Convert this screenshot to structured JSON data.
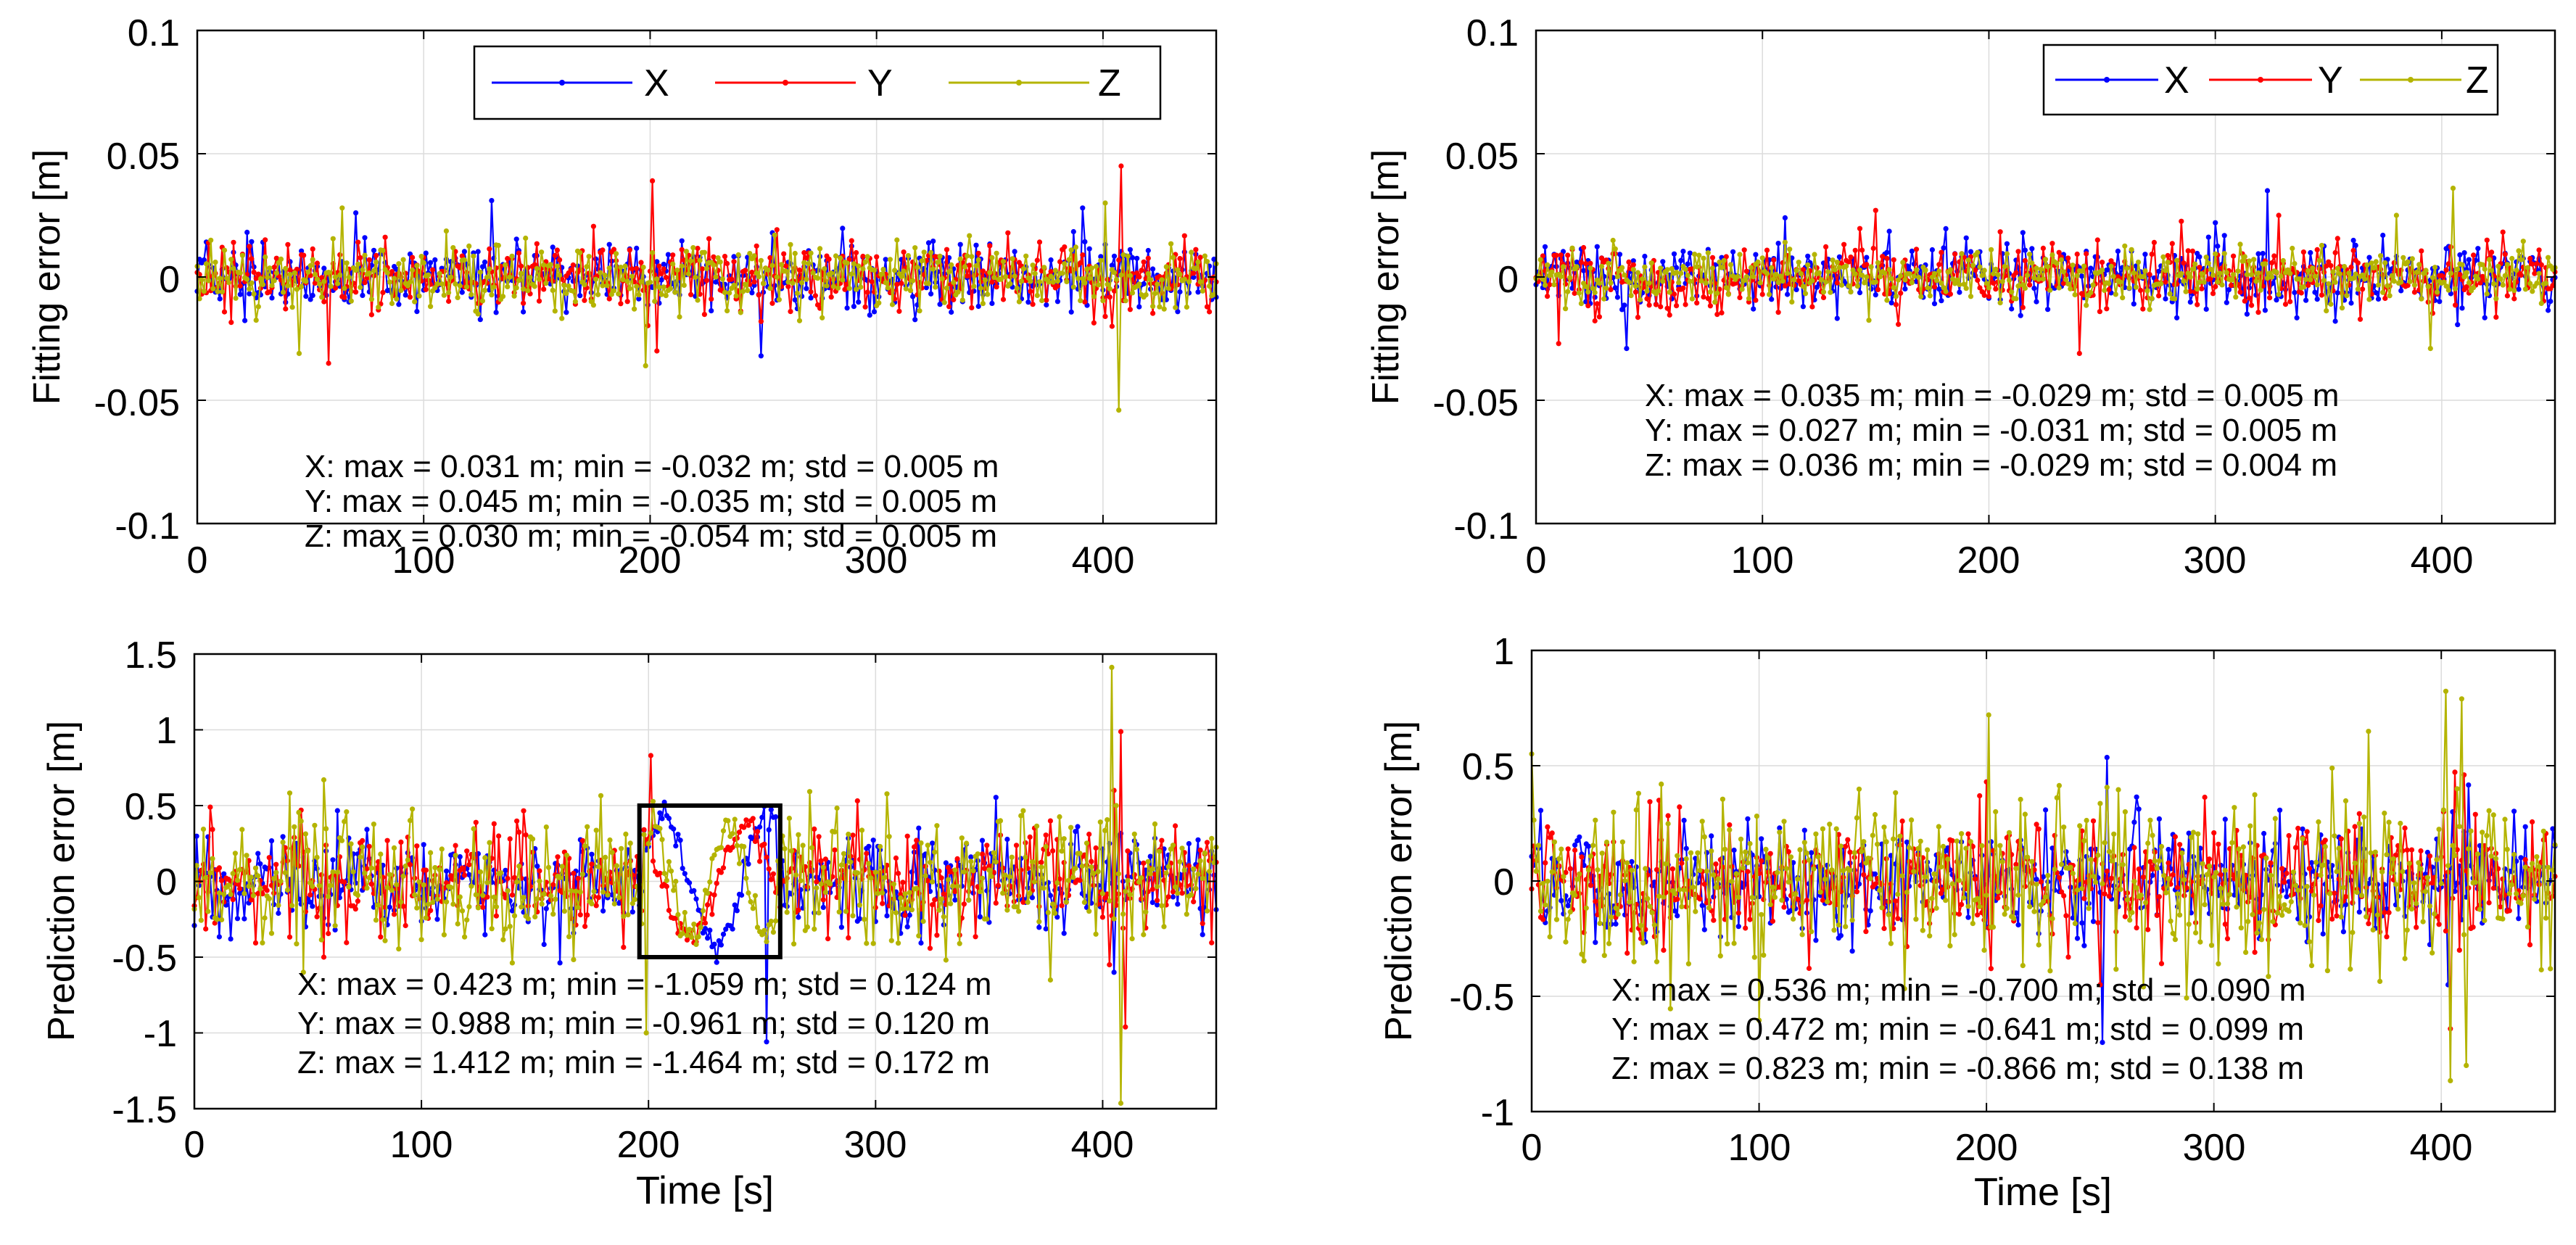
{
  "chart_data": [
    {
      "type": "line",
      "panel": "top-left",
      "title": "",
      "xlabel": "",
      "ylabel": "Fitting error [m]",
      "xlim": [
        0,
        450
      ],
      "ylim": [
        -0.1,
        0.1
      ],
      "xticks": [
        "0",
        "100",
        "200",
        "300",
        "400"
      ],
      "xtick_values": [
        0,
        100,
        200,
        300,
        400
      ],
      "yticks": [
        "-0.1",
        "-0.05",
        "0",
        "0.05",
        "0.1"
      ],
      "ytick_values": [
        -0.1,
        -0.05,
        0,
        0.05,
        0.1
      ],
      "grid": true,
      "legend": {
        "placement": "top-right",
        "layout": "horizontal"
      },
      "series": [
        {
          "name": "X",
          "color": "#0000ff",
          "std": 0.005,
          "max": 0.031,
          "min": -0.032,
          "spikes": [
            [
              130,
              0.031
            ],
            [
              249,
              -0.032
            ],
            [
              391,
              0.028
            ],
            [
              70,
              0.026
            ]
          ]
        },
        {
          "name": "Y",
          "color": "#ff0000",
          "std": 0.005,
          "max": 0.045,
          "min": -0.035,
          "spikes": [
            [
              201,
              0.039
            ],
            [
              203,
              -0.03
            ],
            [
              408,
              0.045
            ],
            [
              58,
              -0.035
            ],
            [
              404,
              -0.02
            ]
          ]
        },
        {
          "name": "Z",
          "color": "#b4b400",
          "std": 0.005,
          "max": 0.03,
          "min": -0.054,
          "spikes": [
            [
              407,
              -0.054
            ],
            [
              198,
              -0.036
            ],
            [
              45,
              -0.031
            ],
            [
              401,
              0.03
            ],
            [
              64,
              0.028
            ]
          ]
        }
      ],
      "stats": [
        "X: max = 0.031 m; min = -0.032 m; std = 0.005 m",
        "Y: max = 0.045 m; min = -0.035 m; std = 0.005 m",
        "Z: max = 0.030 m; min = -0.054 m; std = 0.005 m"
      ],
      "box": null
    },
    {
      "type": "line",
      "panel": "top-right",
      "title": "",
      "xlabel": "",
      "ylabel": "Fitting error [m]",
      "xlim": [
        0,
        450
      ],
      "ylim": [
        -0.1,
        0.1
      ],
      "xticks": [
        "0",
        "100",
        "200",
        "300",
        "400"
      ],
      "xtick_values": [
        0,
        100,
        200,
        300,
        400
      ],
      "yticks": [
        "-0.1",
        "-0.05",
        "0",
        "0.05",
        "0.1"
      ],
      "ytick_values": [
        -0.1,
        -0.05,
        0,
        0.05,
        0.1
      ],
      "grid": true,
      "legend": {
        "placement": "top-right",
        "layout": "horizontal"
      },
      "series": [
        {
          "name": "X",
          "color": "#0000ff",
          "std": 0.005,
          "max": 0.035,
          "min": -0.029,
          "spikes": [
            [
              323,
              0.035
            ],
            [
              40,
              -0.029
            ],
            [
              300,
              0.022
            ],
            [
              110,
              0.024
            ]
          ]
        },
        {
          "name": "Y",
          "color": "#ff0000",
          "std": 0.005,
          "max": 0.027,
          "min": -0.031,
          "spikes": [
            [
              240,
              -0.031
            ],
            [
              10,
              -0.027
            ],
            [
              150,
              0.027
            ],
            [
              328,
              0.025
            ]
          ]
        },
        {
          "name": "Z",
          "color": "#b4b400",
          "std": 0.004,
          "max": 0.036,
          "min": -0.029,
          "spikes": [
            [
              405,
              0.036
            ],
            [
              395,
              -0.029
            ],
            [
              380,
              0.025
            ]
          ]
        }
      ],
      "stats": [
        "X: max = 0.035 m; min = -0.029 m; std = 0.005 m",
        "Y: max = 0.027 m; min = -0.031 m; std = 0.005 m",
        "Z: max = 0.036 m; min = -0.029 m; std = 0.004 m"
      ],
      "box": null
    },
    {
      "type": "line",
      "panel": "bottom-left",
      "title": "",
      "xlabel": "Time [s]",
      "ylabel": "Prediction error [m]",
      "xlim": [
        0,
        450
      ],
      "ylim": [
        -1.5,
        1.5
      ],
      "xticks": [
        "0",
        "100",
        "200",
        "300",
        "400"
      ],
      "xtick_values": [
        0,
        100,
        200,
        300,
        400
      ],
      "yticks": [
        "-1.5",
        "-1",
        "-0.5",
        "0",
        "0.5",
        "1",
        "1.5"
      ],
      "ytick_values": [
        -1.5,
        -1,
        -0.5,
        0,
        0.5,
        1,
        1.5
      ],
      "grid": true,
      "legend": null,
      "series": [
        {
          "name": "X",
          "color": "#0000ff",
          "std": 0.124,
          "max": 0.423,
          "min": -1.059,
          "spikes": [
            [
              47,
              -0.15
            ],
            [
              49,
              -0.3
            ],
            [
              58,
              0.2
            ],
            [
              107,
              -0.25
            ],
            [
              151,
              0.1
            ],
            [
              403,
              0.25
            ],
            [
              405,
              -0.6
            ],
            [
              407,
              0.3
            ],
            [
              252,
              -1.059
            ]
          ],
          "wave": {
            "from": 198,
            "to": 256,
            "amplitude": 0.42,
            "period": 46,
            "phase": 0.4
          }
        },
        {
          "name": "Y",
          "color": "#ff0000",
          "std": 0.12,
          "max": 0.988,
          "min": -0.961,
          "spikes": [
            [
              47,
              0.47
            ],
            [
              49,
              -0.2
            ],
            [
              57,
              -0.5
            ],
            [
              201,
              0.83
            ],
            [
              403,
              -0.55
            ],
            [
              405,
              0.6
            ],
            [
              408,
              0.988
            ],
            [
              410,
              -0.961
            ]
          ],
          "wave": {
            "from": 198,
            "to": 256,
            "amplitude": 0.38,
            "period": 50,
            "phase": 2.2
          }
        },
        {
          "name": "Z",
          "color": "#b4b400",
          "std": 0.172,
          "max": 1.412,
          "min": -1.464,
          "spikes": [
            [
              48,
              -0.6
            ],
            [
              50,
              0.2
            ],
            [
              57,
              0.67
            ],
            [
              59,
              -0.1
            ],
            [
              153,
              -0.15
            ],
            [
              199,
              -1.0
            ],
            [
              404,
              1.412
            ],
            [
              406,
              0.5
            ],
            [
              408,
              -1.464
            ]
          ],
          "wave": {
            "from": 198,
            "to": 256,
            "amplitude": 0.37,
            "period": 34,
            "phase": 1.0
          }
        }
      ],
      "stats": [
        "X: max = 0.423 m; min = -1.059 m; std = 0.124 m",
        "Y: max = 0.988 m; min = -0.961 m; std = 0.120 m",
        "Z: max = 1.412 m; min = -1.464 m; std = 0.172 m"
      ],
      "box": {
        "x": [
          196,
          258
        ],
        "y": [
          -0.5,
          0.5
        ]
      }
    },
    {
      "type": "line",
      "panel": "bottom-right",
      "title": "",
      "xlabel": "Time [s]",
      "ylabel": "Prediction error [m]",
      "xlim": [
        0,
        450
      ],
      "ylim": [
        -1,
        1
      ],
      "xticks": [
        "0",
        "100",
        "200",
        "300",
        "400"
      ],
      "xtick_values": [
        0,
        100,
        200,
        300,
        400
      ],
      "yticks": [
        "-1",
        "-0.5",
        "0",
        "0.5",
        "1"
      ],
      "ytick_values": [
        -1,
        -0.5,
        0,
        0.5,
        1
      ],
      "grid": true,
      "legend": null,
      "series": [
        {
          "name": "X",
          "color": "#0000ff",
          "std": 0.09,
          "max": 0.536,
          "min": -0.7,
          "spikes": [
            [
              109,
              0.23
            ],
            [
              200,
              -0.2
            ],
            [
              251,
              -0.7
            ],
            [
              253,
              0.536
            ],
            [
              403,
              -0.45
            ],
            [
              405,
              0.3
            ]
          ]
        },
        {
          "name": "Y",
          "color": "#ff0000",
          "std": 0.099,
          "max": 0.472,
          "min": -0.641,
          "spikes": [
            [
              48,
              -0.25
            ],
            [
              56,
              0.35
            ],
            [
              58,
              -0.3
            ],
            [
              200,
              0.43
            ],
            [
              202,
              -0.38
            ],
            [
              250,
              -0.45
            ],
            [
              404,
              -0.641
            ],
            [
              406,
              0.472
            ],
            [
              408,
              -0.3
            ],
            [
              410,
              0.46
            ]
          ]
        },
        {
          "name": "Z",
          "color": "#b4b400",
          "std": 0.138,
          "max": 0.823,
          "min": -0.866,
          "spikes": [
            [
              45,
              -0.35
            ],
            [
              47,
              0.38
            ],
            [
              55,
              -0.35
            ],
            [
              57,
              0.42
            ],
            [
              199,
              -0.3
            ],
            [
              201,
              0.72
            ],
            [
              203,
              -0.2
            ],
            [
              402,
              0.823
            ],
            [
              404,
              -0.866
            ],
            [
              407,
              0.4
            ],
            [
              409,
              0.79
            ],
            [
              411,
              -0.8
            ]
          ]
        }
      ],
      "stats": [
        "X: max = 0.536 m; min = -0.700 m; std = 0.090 m",
        "Y: max = 0.472 m; min = -0.641 m; std = 0.099 m",
        "Z: max = 0.823 m; min = -0.866 m; std = 0.138 m"
      ],
      "box": null
    }
  ]
}
